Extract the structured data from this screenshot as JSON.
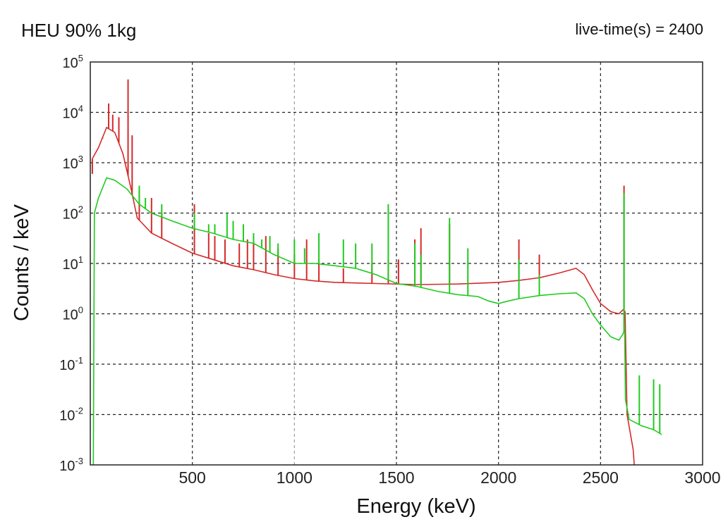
{
  "header": {
    "title": "HEU 90%  1kg",
    "live_time": "live-time(s) = 2400"
  },
  "chart_data": {
    "type": "line",
    "title": "HEU 90%  1kg",
    "xlabel": "Energy (keV)",
    "ylabel": "Counts / keV",
    "xlim": [
      0,
      3000
    ],
    "ylim": [
      0.001,
      100000
    ],
    "yscale": "log",
    "grid": true,
    "x_ticks": [
      500,
      1000,
      1500,
      2000,
      2500,
      3000
    ],
    "x_tick_labels": [
      "500",
      "1000",
      "1500",
      "2000",
      "2500",
      "3000"
    ],
    "y_ticks": [
      {
        "base": "10",
        "exp": "-3",
        "value": 0.001
      },
      {
        "base": "10",
        "exp": "-2",
        "value": 0.01
      },
      {
        "base": "10",
        "exp": "-1",
        "value": 0.1
      },
      {
        "base": "10",
        "exp": "0",
        "value": 1
      },
      {
        "base": "10",
        "exp": "1",
        "value": 10
      },
      {
        "base": "10",
        "exp": "2",
        "value": 100
      },
      {
        "base": "10",
        "exp": "3",
        "value": 1000
      },
      {
        "base": "10",
        "exp": "4",
        "value": 10000
      },
      {
        "base": "10",
        "exp": "5",
        "value": 100000
      }
    ],
    "series": [
      {
        "color": "#d42a2a",
        "continuum": [
          [
            10,
            1200
          ],
          [
            40,
            2000
          ],
          [
            80,
            5000
          ],
          [
            120,
            4000
          ],
          [
            160,
            1500
          ],
          [
            200,
            300
          ],
          [
            230,
            80
          ],
          [
            300,
            40
          ],
          [
            400,
            25
          ],
          [
            500,
            16
          ],
          [
            600,
            12
          ],
          [
            700,
            9
          ],
          [
            800,
            7.5
          ],
          [
            900,
            6
          ],
          [
            1000,
            5
          ],
          [
            1100,
            4.5
          ],
          [
            1200,
            4.2
          ],
          [
            1400,
            4
          ],
          [
            1600,
            3.8
          ],
          [
            1800,
            3.9
          ],
          [
            2000,
            4.2
          ],
          [
            2100,
            4.6
          ],
          [
            2200,
            5.2
          ],
          [
            2300,
            6.5
          ],
          [
            2380,
            8
          ],
          [
            2420,
            6
          ],
          [
            2460,
            3
          ],
          [
            2500,
            1.6
          ],
          [
            2550,
            1.1
          ],
          [
            2590,
            1
          ],
          [
            2610,
            1.2
          ],
          [
            2620,
            1.1
          ],
          [
            2630,
            0.01
          ],
          [
            2660,
            0.002
          ],
          [
            2665,
            0.001
          ]
        ],
        "peaks": [
          [
            10,
            600
          ],
          [
            60,
            3000
          ],
          [
            90,
            15000
          ],
          [
            110,
            9000
          ],
          [
            140,
            8000
          ],
          [
            185,
            45000
          ],
          [
            205,
            3500
          ],
          [
            240,
            300
          ],
          [
            300,
            200
          ],
          [
            350,
            100
          ],
          [
            510,
            150
          ],
          [
            580,
            40
          ],
          [
            610,
            35
          ],
          [
            660,
            30
          ],
          [
            730,
            25
          ],
          [
            770,
            30
          ],
          [
            800,
            25
          ],
          [
            860,
            35
          ],
          [
            920,
            20
          ],
          [
            1000,
            15
          ],
          [
            1060,
            30
          ],
          [
            1120,
            12
          ],
          [
            1240,
            8
          ],
          [
            1380,
            10
          ],
          [
            1460,
            12
          ],
          [
            1510,
            12
          ],
          [
            1590,
            30
          ],
          [
            1620,
            50
          ],
          [
            1760,
            60
          ],
          [
            2100,
            30
          ],
          [
            2200,
            15
          ],
          [
            2615,
            350
          ]
        ]
      },
      {
        "color": "#1fcb1f",
        "continuum": [
          [
            15,
            0.001
          ],
          [
            20,
            100
          ],
          [
            40,
            200
          ],
          [
            80,
            500
          ],
          [
            120,
            450
          ],
          [
            180,
            300
          ],
          [
            240,
            150
          ],
          [
            300,
            100
          ],
          [
            400,
            70
          ],
          [
            500,
            50
          ],
          [
            600,
            40
          ],
          [
            700,
            30
          ],
          [
            800,
            25
          ],
          [
            900,
            15
          ],
          [
            1000,
            10
          ],
          [
            1100,
            10
          ],
          [
            1200,
            9
          ],
          [
            1300,
            8
          ],
          [
            1400,
            6
          ],
          [
            1500,
            4
          ],
          [
            1600,
            3.5
          ],
          [
            1700,
            2.8
          ],
          [
            1800,
            2.4
          ],
          [
            1900,
            2.2
          ],
          [
            1950,
            1.8
          ],
          [
            2000,
            1.6
          ],
          [
            2050,
            1.8
          ],
          [
            2100,
            2.0
          ],
          [
            2200,
            2.3
          ],
          [
            2300,
            2.5
          ],
          [
            2380,
            2.6
          ],
          [
            2420,
            2
          ],
          [
            2460,
            1
          ],
          [
            2500,
            0.6
          ],
          [
            2550,
            0.35
          ],
          [
            2590,
            0.3
          ],
          [
            2610,
            0.4
          ],
          [
            2618,
            0.5
          ],
          [
            2622,
            0.02
          ],
          [
            2640,
            0.008
          ],
          [
            2700,
            0.006
          ],
          [
            2760,
            0.005
          ],
          [
            2800,
            0.004
          ]
        ],
        "peaks": [
          [
            240,
            350
          ],
          [
            270,
            200
          ],
          [
            350,
            150
          ],
          [
            510,
            100
          ],
          [
            580,
            60
          ],
          [
            610,
            60
          ],
          [
            670,
            100
          ],
          [
            700,
            70
          ],
          [
            750,
            60
          ],
          [
            800,
            40
          ],
          [
            840,
            30
          ],
          [
            880,
            35
          ],
          [
            920,
            25
          ],
          [
            1000,
            30
          ],
          [
            1050,
            20
          ],
          [
            1120,
            40
          ],
          [
            1240,
            30
          ],
          [
            1300,
            25
          ],
          [
            1380,
            25
          ],
          [
            1460,
            150
          ],
          [
            1590,
            25
          ],
          [
            1620,
            15
          ],
          [
            1760,
            80
          ],
          [
            1850,
            20
          ],
          [
            2100,
            12
          ],
          [
            2200,
            6
          ],
          [
            2615,
            250
          ],
          [
            2690,
            0.06
          ],
          [
            2760,
            0.05
          ],
          [
            2790,
            0.04
          ]
        ]
      }
    ]
  }
}
